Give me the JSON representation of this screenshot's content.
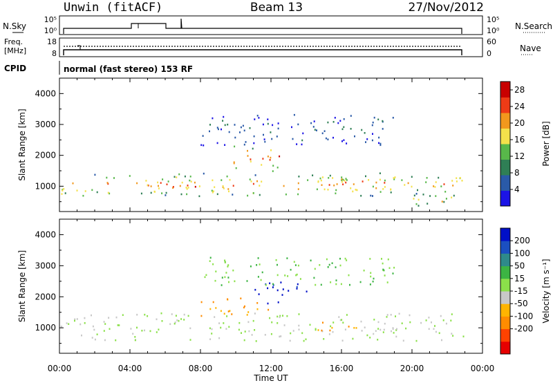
{
  "header": {
    "station": "Unwin (fitACF)",
    "beam": "Beam 13",
    "date": "27/Nov/2012"
  },
  "summary_panels": {
    "nsky_label": "N.Sky",
    "nsearch_label": "N.Search",
    "freq_label_line1": "Freq.",
    "freq_label_line2": "[MHz]",
    "nave_label": "Nave",
    "cpid_label": "CPID",
    "cpid_text": "normal (fast stereo) 153 RF",
    "nsky_ticks": [
      "10^5",
      "10^0"
    ],
    "freq_ticks": [
      "18",
      "8"
    ],
    "nave_ticks": [
      "60",
      "0"
    ]
  },
  "chart_data": [
    {
      "type": "heatmap",
      "title": "",
      "xlabel": "",
      "ylabel": "Slant Range [km]",
      "x_ticks": [
        "00:00",
        "04:00",
        "08:00",
        "12:00",
        "16:00",
        "20:00",
        "00:00"
      ],
      "xlim_hours": [
        0,
        24
      ],
      "y_ticks": [
        "1000",
        "2000",
        "3000",
        "4000"
      ],
      "ylim_km": [
        180,
        4500
      ],
      "colorbar": {
        "label": "Power [dB]",
        "ticks": [
          "28",
          "24",
          "20",
          "16",
          "12",
          "8",
          "4"
        ],
        "range": [
          0,
          30
        ],
        "colors": [
          "#1c14e6",
          "#2a5aa8",
          "#2f7f55",
          "#58b84a",
          "#f4e14b",
          "#f2981d",
          "#ee3b16",
          "#c80000"
        ]
      },
      "regions": [
        {
          "t0": 0.0,
          "t1": 22.9,
          "r0": 700,
          "r1": 1450,
          "level": 0.68
        },
        {
          "t0": 5.5,
          "t1": 10.0,
          "r0": 850,
          "r1": 1250,
          "level": 0.88
        },
        {
          "t0": 9.8,
          "t1": 12.5,
          "r0": 1500,
          "r1": 2350,
          "level": 0.85
        },
        {
          "t0": 14.0,
          "t1": 17.5,
          "r0": 850,
          "r1": 1350,
          "level": 0.9
        },
        {
          "t0": 8.0,
          "t1": 19.0,
          "r0": 2350,
          "r1": 3350,
          "level": 0.22
        },
        {
          "t0": 20.0,
          "t1": 22.9,
          "r0": 300,
          "r1": 850,
          "level": 0.55
        }
      ]
    },
    {
      "type": "heatmap",
      "title": "",
      "xlabel": "Time UT",
      "ylabel": "Slant Range [km]",
      "x_ticks": [
        "00:00",
        "04:00",
        "08:00",
        "12:00",
        "16:00",
        "20:00",
        "00:00"
      ],
      "xlim_hours": [
        0,
        24
      ],
      "y_ticks": [
        "1000",
        "2000",
        "3000",
        "4000"
      ],
      "ylim_km": [
        180,
        4500
      ],
      "colorbar": {
        "label": "Velocity [m s^-1]",
        "ticks": [
          "200",
          "100",
          "50",
          "15",
          "-15",
          "-50",
          "-100",
          "-200"
        ],
        "range": [
          -250,
          250
        ],
        "colors": [
          "#e60000",
          "#ff4200",
          "#ff8c00",
          "#ffb400",
          "#c8c8c8",
          "#8be04a",
          "#3cb443",
          "#2e8a8a",
          "#1b4fc0",
          "#0010c8"
        ]
      },
      "regions": [
        {
          "t0": 0.0,
          "t1": 22.9,
          "r0": 600,
          "r1": 1500,
          "level": 0.5
        },
        {
          "t0": 11.0,
          "t1": 14.0,
          "r0": 1800,
          "r1": 2500,
          "level": 0.95
        },
        {
          "t0": 8.0,
          "t1": 12.0,
          "r0": 1400,
          "r1": 2000,
          "level": 0.3
        },
        {
          "t0": 14.5,
          "t1": 17.0,
          "r0": 900,
          "r1": 1300,
          "level": 0.3
        },
        {
          "t0": 8.0,
          "t1": 19.0,
          "r0": 2400,
          "r1": 3300,
          "level": 0.6
        }
      ]
    }
  ]
}
